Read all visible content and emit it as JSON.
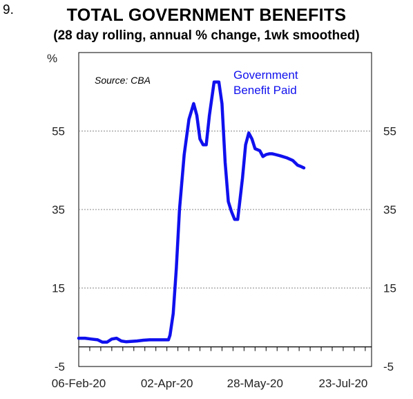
{
  "figure_number": "9.",
  "chart_data": {
    "type": "line",
    "title": "TOTAL GOVERNMENT BENEFITS",
    "subtitle": "(28 day rolling, annual % change,  1wk smoothed)",
    "ylabel_left": "%",
    "source": "Source: CBA",
    "ylim": [
      -5,
      75
    ],
    "yticks": [
      -5,
      15,
      35,
      55
    ],
    "ytick_labels": [
      "-5",
      "15",
      "35",
      "55"
    ],
    "x_range": [
      "2020-02-06",
      "2020-08-10"
    ],
    "xticks": [
      "2020-02-06",
      "2020-04-02",
      "2020-05-28",
      "2020-07-23"
    ],
    "xtick_labels": [
      "06-Feb-20",
      "02-Apr-20",
      "28-May-20",
      "23-Jul-20"
    ],
    "grid": "horizontal dotted",
    "colors": {
      "series": "#1010ee",
      "grid": "#888888",
      "axis": "#000000"
    },
    "series": [
      {
        "name": "Government Benefit Paid",
        "label_lines": [
          "Government",
          "Benefit Paid"
        ],
        "x": [
          "2020-02-06",
          "2020-02-10",
          "2020-02-14",
          "2020-02-18",
          "2020-02-21",
          "2020-02-24",
          "2020-02-27",
          "2020-03-01",
          "2020-03-04",
          "2020-03-07",
          "2020-03-10",
          "2020-03-14",
          "2020-03-18",
          "2020-03-22",
          "2020-03-26",
          "2020-03-30",
          "2020-04-03",
          "2020-04-04",
          "2020-04-06",
          "2020-04-08",
          "2020-04-10",
          "2020-04-13",
          "2020-04-16",
          "2020-04-19",
          "2020-04-21",
          "2020-04-23",
          "2020-04-25",
          "2020-04-27",
          "2020-04-29",
          "2020-05-02",
          "2020-05-05",
          "2020-05-07",
          "2020-05-09",
          "2020-05-11",
          "2020-05-13",
          "2020-05-15",
          "2020-05-17",
          "2020-05-20",
          "2020-05-22",
          "2020-05-24",
          "2020-05-26",
          "2020-05-28",
          "2020-05-31",
          "2020-06-02",
          "2020-06-04",
          "2020-06-06",
          "2020-06-08",
          "2020-06-10",
          "2020-06-13",
          "2020-06-17",
          "2020-06-21",
          "2020-06-24",
          "2020-06-26",
          "2020-06-28"
        ],
        "values": [
          2.2,
          2.2,
          2.0,
          1.8,
          1.2,
          1.2,
          2.0,
          2.2,
          1.5,
          1.3,
          1.4,
          1.5,
          1.7,
          1.8,
          1.8,
          1.8,
          1.8,
          3.0,
          8.5,
          20.0,
          35.0,
          49.0,
          58.0,
          62.0,
          59.0,
          53.0,
          51.5,
          51.5,
          59.0,
          67.5,
          67.5,
          62.0,
          47.0,
          37.0,
          34.5,
          32.5,
          32.5,
          43.0,
          51.5,
          54.5,
          53.0,
          50.5,
          50.0,
          48.5,
          49.0,
          49.2,
          49.2,
          49.0,
          48.7,
          48.2,
          47.5,
          46.3,
          46.0,
          45.6
        ]
      }
    ]
  }
}
